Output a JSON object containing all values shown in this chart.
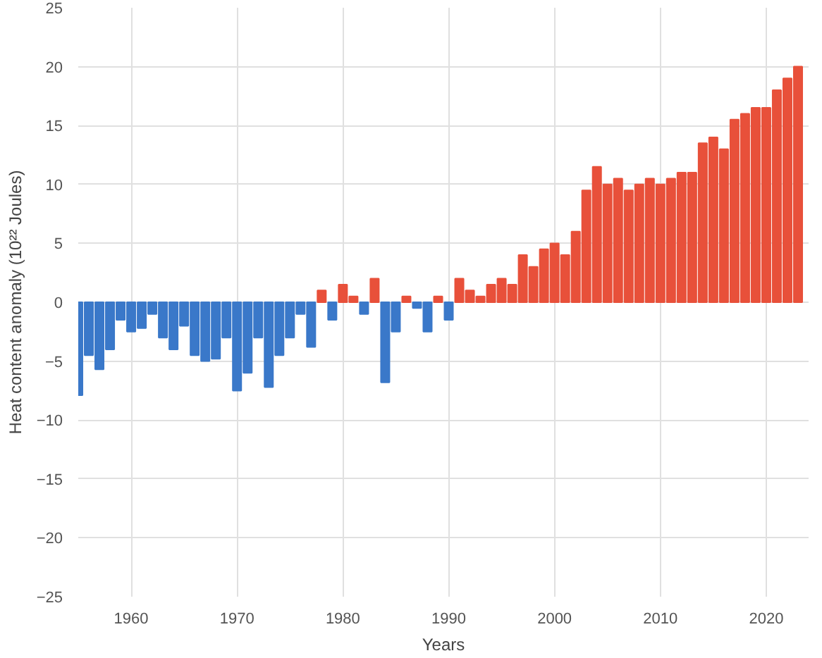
{
  "chart_data": {
    "type": "bar",
    "xlabel": "Years",
    "ylabel": "Heat content anomaly (10²² Joules)",
    "x": [
      1955,
      1956,
      1957,
      1958,
      1959,
      1960,
      1961,
      1962,
      1963,
      1964,
      1965,
      1966,
      1967,
      1968,
      1969,
      1970,
      1971,
      1972,
      1973,
      1974,
      1975,
      1976,
      1977,
      1978,
      1979,
      1980,
      1981,
      1982,
      1983,
      1984,
      1985,
      1986,
      1987,
      1988,
      1989,
      1990,
      1991,
      1992,
      1993,
      1994,
      1995,
      1996,
      1997,
      1998,
      1999,
      2000,
      2001,
      2002,
      2003,
      2004,
      2005,
      2006,
      2007,
      2008,
      2009,
      2010,
      2011,
      2012,
      2013,
      2014,
      2015,
      2016,
      2017,
      2018,
      2019,
      2020,
      2021,
      2022,
      2023
    ],
    "values": [
      -7.9,
      -4.5,
      -5.7,
      -4,
      -1.5,
      -2.5,
      -2.2,
      -1,
      -3,
      -4,
      -2,
      -4.5,
      -5,
      -4.8,
      -3,
      -7.5,
      -6,
      -3,
      -7.2,
      -4.5,
      -3,
      -1,
      -3.8,
      1,
      -1.5,
      1.5,
      0.5,
      -1,
      2,
      -6.8,
      -2.5,
      0.5,
      -0.5,
      -2.5,
      0.5,
      -1.5,
      2,
      1,
      0.5,
      1.5,
      2,
      1.5,
      4,
      3,
      4.5,
      5,
      4,
      6,
      9.5,
      11.5,
      10,
      10.5,
      9.5,
      10,
      10.5,
      10,
      10.5,
      11,
      11,
      13.5,
      14,
      13,
      15.5,
      16,
      16.5,
      16.5,
      18,
      19,
      20
    ],
    "colors": [
      "#3a78c9",
      "#3a78c9",
      "#3a78c9",
      "#3a78c9",
      "#3a78c9",
      "#3a78c9",
      "#3a78c9",
      "#3a78c9",
      "#3a78c9",
      "#3a78c9",
      "#3a78c9",
      "#3a78c9",
      "#3a78c9",
      "#3a78c9",
      "#3a78c9",
      "#3a78c9",
      "#3a78c9",
      "#3a78c9",
      "#3a78c9",
      "#3a78c9",
      "#3a78c9",
      "#3a78c9",
      "#3a78c9",
      "#e8503a",
      "#3a78c9",
      "#e8503a",
      "#e8503a",
      "#3a78c9",
      "#e8503a",
      "#3a78c9",
      "#3a78c9",
      "#e8503a",
      "#3a78c9",
      "#3a78c9",
      "#e8503a",
      "#3a78c9",
      "#e8503a",
      "#e8503a",
      "#e8503a",
      "#e8503a",
      "#e8503a",
      "#e8503a",
      "#e8503a",
      "#e8503a",
      "#e8503a",
      "#e8503a",
      "#e8503a",
      "#e8503a",
      "#e8503a",
      "#e8503a",
      "#e8503a",
      "#e8503a",
      "#e8503a",
      "#e8503a",
      "#e8503a",
      "#e8503a",
      "#e8503a",
      "#e8503a",
      "#e8503a",
      "#e8503a",
      "#e8503a",
      "#e8503a",
      "#e8503a",
      "#e8503a",
      "#e8503a",
      "#e8503a",
      "#e8503a",
      "#e8503a",
      "#e8503a"
    ],
    "xlim": [
      1955,
      2024
    ],
    "xticks": [
      1960,
      1970,
      1980,
      1990,
      2000,
      2010,
      2020
    ],
    "ylim": [
      -25,
      25
    ],
    "yticks": [
      -25,
      -20,
      -15,
      -10,
      -5,
      0,
      5,
      10,
      15,
      20,
      25
    ],
    "grid": true
  }
}
